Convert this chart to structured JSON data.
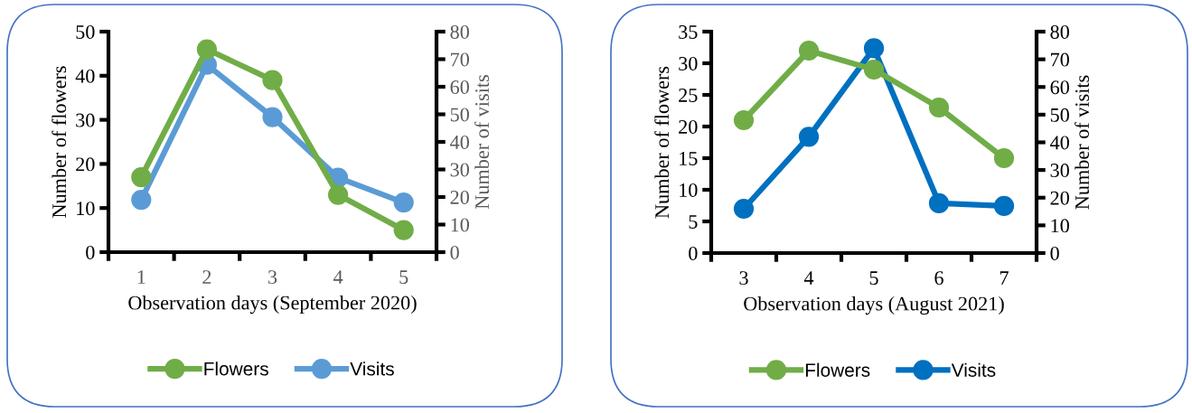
{
  "chart_data": [
    {
      "type": "line",
      "xlabel": "Observation days (September 2020)",
      "ylabel": "Number of flowers",
      "y2label": "Number of visits",
      "categories": [
        "1",
        "2",
        "3",
        "4",
        "5"
      ],
      "ylim": [
        0,
        50
      ],
      "yticks": [
        0,
        10,
        20,
        30,
        40,
        50
      ],
      "y2lim": [
        0,
        80
      ],
      "y2ticks": [
        0,
        10,
        20,
        30,
        40,
        50,
        60,
        70,
        80
      ],
      "marker": "circle",
      "line_style": "solid",
      "legend": "bottom",
      "grid": false,
      "series": [
        {
          "name": "Flowers",
          "color": "#70ad47",
          "values": [
            17,
            46,
            39,
            13,
            5
          ]
        },
        {
          "name": "Visits",
          "color": "#5b9bd5",
          "values": [
            19,
            68,
            49,
            27,
            18
          ],
          "axis": "y2"
        }
      ]
    },
    {
      "type": "line",
      "xlabel": "Observation days (August 2021)",
      "ylabel": "Number of flowers",
      "y2label": "Number of visits",
      "categories": [
        "3",
        "4",
        "5",
        "6",
        "7"
      ],
      "ylim": [
        0,
        35
      ],
      "yticks": [
        0,
        5,
        10,
        15,
        20,
        25,
        30,
        35
      ],
      "y2lim": [
        0,
        80
      ],
      "y2ticks": [
        0,
        10,
        20,
        30,
        40,
        50,
        60,
        70,
        80
      ],
      "marker": "circle",
      "line_style": "solid",
      "legend": "bottom",
      "grid": false,
      "series": [
        {
          "name": "Flowers",
          "color": "#70ad47",
          "values": [
            21,
            32,
            29,
            23,
            15
          ]
        },
        {
          "name": "Visits",
          "color": "#0070c0",
          "values": [
            16,
            42,
            74,
            18,
            17
          ],
          "axis": "y2"
        }
      ]
    }
  ]
}
